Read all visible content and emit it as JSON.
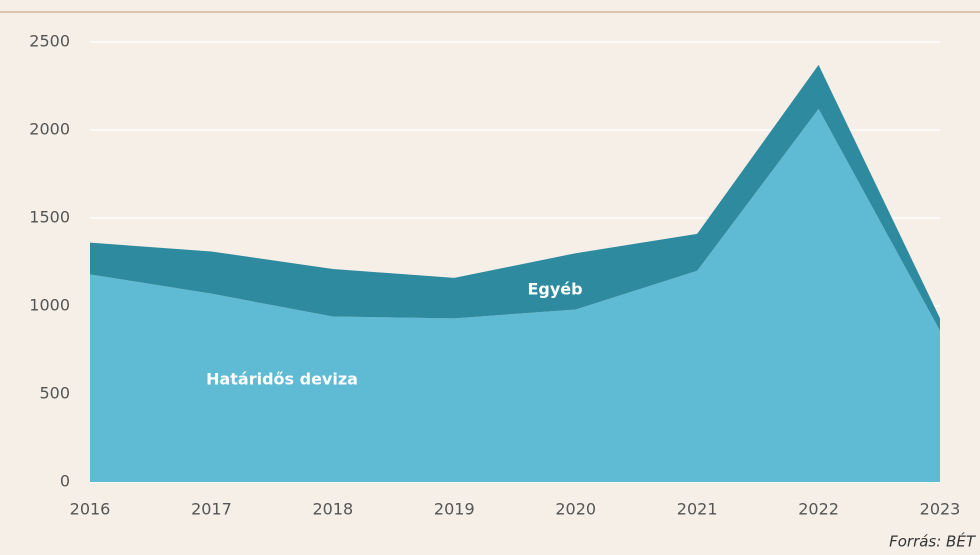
{
  "chart_data": {
    "type": "stacked_area",
    "categories": [
      "2016",
      "2017",
      "2018",
      "2019",
      "2020",
      "2021",
      "2022",
      "2023"
    ],
    "series": [
      {
        "name": "Határidős deviza",
        "color": "#5fbad3",
        "values": [
          1180,
          1070,
          940,
          930,
          980,
          1200,
          2120,
          860
        ]
      },
      {
        "name": "Egyéb",
        "color": "#2e8a9e",
        "values": [
          180,
          240,
          270,
          230,
          320,
          210,
          250,
          70
        ]
      }
    ],
    "ylim": [
      0,
      2500
    ],
    "yticks": [
      0,
      500,
      1000,
      1500,
      2000,
      2500
    ],
    "grid": true,
    "source": "Forrás: BÉT"
  }
}
